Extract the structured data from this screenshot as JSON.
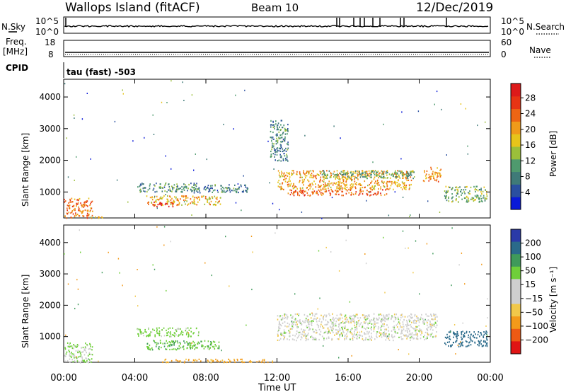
{
  "header": {
    "station": "Wallops Island (fitACF)",
    "beam": "Beam 10",
    "date": "12/Dec/2019"
  },
  "nsky_panel": {
    "left_label": "N.Sky",
    "right_label": "N.Search",
    "left_ticks": [
      "10^5",
      "10^0"
    ],
    "right_ticks": [
      "10^5",
      "10^0"
    ]
  },
  "freq_panel": {
    "left_label_line1": "Freq.",
    "left_label_line2": "[MHz]",
    "left_ticks": [
      "18",
      "8"
    ],
    "right_label": "Nave",
    "right_ticks": [
      "60",
      "0"
    ],
    "cpid_label": "CPID",
    "cpid_text": "tau (fast) -503"
  },
  "colors": {
    "power": [
      "#0a1ad8",
      "#2a4fa0",
      "#3f7a78",
      "#4f9a6e",
      "#9bbf3a",
      "#e7c41a",
      "#f09a1a",
      "#ee6514",
      "#e83414",
      "#dd1a1a"
    ],
    "velocity": [
      "#e01414",
      "#ee5a14",
      "#f39a1a",
      "#f1c84a",
      "#cfcfcf",
      "#cfcfcf",
      "#6fcf3a",
      "#3f9a5a",
      "#2a6a8a",
      "#2a3aa8"
    ]
  },
  "chart_data": [
    {
      "type": "heatmap",
      "name": "Power",
      "ylabel": "Slant Range [km]",
      "xlabel": "",
      "x_tick_labels": [
        "00:00",
        "04:00",
        "08:00",
        "12:00",
        "16:00",
        "20:00",
        "00:00"
      ],
      "x_range_hours": [
        0,
        24
      ],
      "y_ticks": [
        1000,
        2000,
        3000,
        4000
      ],
      "ylim": [
        180,
        4560
      ],
      "colorbar": {
        "label": "Power [dB]",
        "ticks": [
          "4",
          "8",
          "12",
          "16",
          "20",
          "24",
          "28"
        ],
        "range": [
          0,
          30
        ]
      },
      "echo_regions": [
        {
          "t0": 0.0,
          "t1": 1.6,
          "r0": 190,
          "r1": 820,
          "value": 22
        },
        {
          "t0": 1.5,
          "t1": 3.0,
          "r0": 190,
          "r1": 240,
          "value": 16
        },
        {
          "t0": 4.1,
          "t1": 7.6,
          "r0": 1020,
          "r1": 1300,
          "value": 9
        },
        {
          "t0": 4.6,
          "t1": 8.8,
          "r0": 600,
          "r1": 900,
          "value": 18
        },
        {
          "t0": 5.0,
          "t1": 6.2,
          "r0": 560,
          "r1": 700,
          "value": 28
        },
        {
          "t0": 7.2,
          "t1": 10.4,
          "r0": 1000,
          "r1": 1250,
          "value": 8
        },
        {
          "t0": 12.0,
          "t1": 19.6,
          "r0": 1100,
          "r1": 1700,
          "value": 19
        },
        {
          "t0": 12.6,
          "t1": 18.2,
          "r0": 900,
          "r1": 1100,
          "value": 24
        },
        {
          "t0": 14.5,
          "t1": 19.8,
          "r0": 1450,
          "r1": 1700,
          "value": 11
        },
        {
          "t0": 20.2,
          "t1": 21.2,
          "r0": 1350,
          "r1": 1800,
          "value": 20
        },
        {
          "t0": 21.4,
          "t1": 23.8,
          "r0": 700,
          "r1": 1200,
          "value": 12
        },
        {
          "t0": 11.6,
          "t1": 12.6,
          "r0": 2000,
          "r1": 3300,
          "value": 8
        }
      ]
    },
    {
      "type": "heatmap",
      "name": "Velocity",
      "ylabel": "Slant Range [km]",
      "xlabel": "Time UT",
      "x_tick_labels": [
        "00:00",
        "04:00",
        "08:00",
        "12:00",
        "16:00",
        "20:00",
        "00:00"
      ],
      "x_range_hours": [
        0,
        24
      ],
      "y_ticks": [
        1000,
        2000,
        3000,
        4000
      ],
      "ylim": [
        180,
        4560
      ],
      "colorbar": {
        "label": "Velocity [m s⁻¹]",
        "ticks": [
          "200",
          "100",
          "50",
          "15",
          "−15",
          "−50",
          "−100",
          "−200"
        ],
        "range": [
          -250,
          250
        ]
      },
      "echo_regions": [
        {
          "t0": 0.0,
          "t1": 1.6,
          "r0": 190,
          "r1": 820,
          "value": 20
        },
        {
          "t0": 4.1,
          "t1": 7.6,
          "r0": 1020,
          "r1": 1300,
          "value": 30
        },
        {
          "t0": 4.6,
          "t1": 8.8,
          "r0": 600,
          "r1": 900,
          "value": 40
        },
        {
          "t0": 12.0,
          "t1": 21.0,
          "r0": 900,
          "r1": 1750,
          "value": 0
        },
        {
          "t0": 21.4,
          "t1": 23.8,
          "r0": 700,
          "r1": 1200,
          "value": 120
        },
        {
          "t0": 5.5,
          "t1": 11.8,
          "r0": 190,
          "r1": 300,
          "value": -60
        }
      ]
    }
  ]
}
